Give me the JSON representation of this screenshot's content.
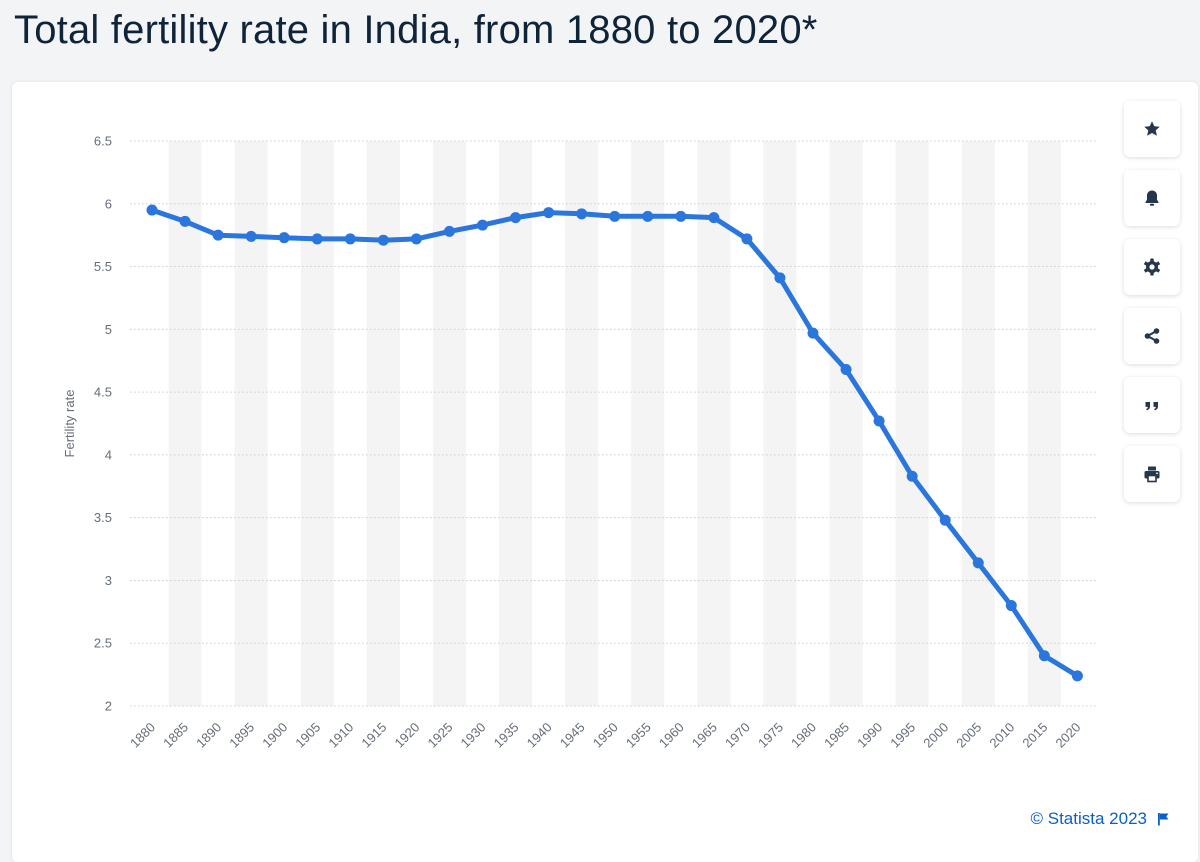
{
  "page": {
    "title": "Total fertility rate in India, from 1880 to 2020*"
  },
  "toolbar": {
    "buttons": [
      {
        "name": "favorite",
        "icon": "star-icon"
      },
      {
        "name": "notification",
        "icon": "bell-icon"
      },
      {
        "name": "settings",
        "icon": "gear-icon"
      },
      {
        "name": "share",
        "icon": "share-icon"
      },
      {
        "name": "cite",
        "icon": "quote-icon"
      },
      {
        "name": "print",
        "icon": "printer-icon"
      }
    ]
  },
  "credit": {
    "text": "© Statista 2023",
    "icon": "flag-icon"
  },
  "colors": {
    "line": "#2a76dd",
    "title": "#0f2439",
    "link": "#0b5fc6",
    "band": "#f4f4f4",
    "icon": "#24374c"
  },
  "chart_data": {
    "type": "line",
    "title": "",
    "xlabel": "",
    "ylabel": "Fertility rate",
    "ylim": [
      2,
      6.5
    ],
    "yticks": [
      2,
      2.5,
      3,
      3.5,
      4,
      4.5,
      5,
      5.5,
      6,
      6.5
    ],
    "grid": true,
    "alternating_bands": true,
    "x": [
      "1880",
      "1885",
      "1890",
      "1895",
      "1900",
      "1905",
      "1910",
      "1915",
      "1920",
      "1925",
      "1930",
      "1935",
      "1940",
      "1945",
      "1950",
      "1955",
      "1960",
      "1965",
      "1970",
      "1975",
      "1980",
      "1985",
      "1990",
      "1995",
      "2000",
      "2005",
      "2010",
      "2015",
      "2020"
    ],
    "series": [
      {
        "values": [
          5.95,
          5.86,
          5.75,
          5.74,
          5.73,
          5.72,
          5.72,
          5.71,
          5.72,
          5.78,
          5.83,
          5.89,
          5.93,
          5.92,
          5.9,
          5.9,
          5.9,
          5.89,
          5.72,
          5.41,
          4.97,
          4.68,
          4.27,
          3.83,
          3.48,
          3.14,
          2.8,
          2.4,
          2.24
        ]
      }
    ]
  }
}
